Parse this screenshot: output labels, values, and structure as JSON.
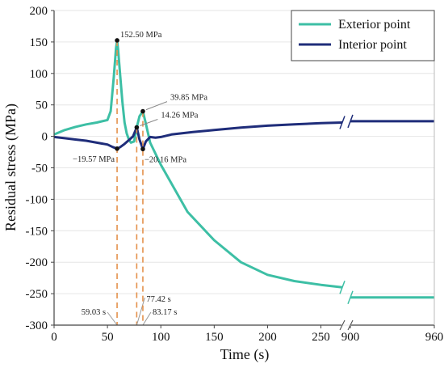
{
  "chart_data": {
    "type": "line",
    "xlabel": "Time (s)",
    "ylabel": "Residual stress (MPa)",
    "ylim": [
      -300,
      200
    ],
    "x_ticks": [
      "0",
      "50",
      "100",
      "150",
      "200",
      "250",
      "900",
      "960"
    ],
    "y_ticks": [
      "200",
      "150",
      "100",
      "50",
      "0",
      "-50",
      "-100",
      "-150",
      "-200",
      "-250",
      "-300"
    ],
    "x_break": {
      "between": [
        270,
        900
      ]
    },
    "legend_position": "top-right",
    "series": [
      {
        "name": "Exterior point",
        "color": "#3dbfa5",
        "points": [
          [
            0,
            3
          ],
          [
            10,
            10
          ],
          [
            20,
            15
          ],
          [
            30,
            19
          ],
          [
            40,
            22
          ],
          [
            50,
            26
          ],
          [
            53,
            40
          ],
          [
            56,
            95
          ],
          [
            58,
            140
          ],
          [
            59.03,
            152.5
          ],
          [
            60,
            138
          ],
          [
            62,
            95
          ],
          [
            64,
            55
          ],
          [
            66,
            22
          ],
          [
            68,
            5
          ],
          [
            70,
            -5
          ],
          [
            72,
            -10
          ],
          [
            75,
            -8
          ],
          [
            77.42,
            14.26
          ],
          [
            80,
            32
          ],
          [
            83.17,
            39.85
          ],
          [
            86,
            20
          ],
          [
            90,
            -10
          ],
          [
            100,
            -45
          ],
          [
            125,
            -120
          ],
          [
            150,
            -165
          ],
          [
            175,
            -200
          ],
          [
            200,
            -220
          ],
          [
            225,
            -230
          ],
          [
            250,
            -236
          ],
          [
            270,
            -240
          ],
          [
            900,
            -256
          ],
          [
            960,
            -256
          ]
        ]
      },
      {
        "name": "Interior point",
        "color": "#1f2d7a",
        "points": [
          [
            0,
            -1
          ],
          [
            10,
            -3
          ],
          [
            20,
            -5
          ],
          [
            30,
            -7
          ],
          [
            40,
            -10
          ],
          [
            50,
            -13
          ],
          [
            55,
            -17
          ],
          [
            59.03,
            -19.57
          ],
          [
            62,
            -17
          ],
          [
            66,
            -12
          ],
          [
            70,
            -6
          ],
          [
            74,
            0
          ],
          [
            77.42,
            14.26
          ],
          [
            80,
            -5
          ],
          [
            83.17,
            -20.16
          ],
          [
            86,
            -8
          ],
          [
            90,
            -1
          ],
          [
            95,
            -2
          ],
          [
            100,
            -1
          ],
          [
            110,
            3
          ],
          [
            130,
            7
          ],
          [
            150,
            10
          ],
          [
            175,
            14
          ],
          [
            200,
            17
          ],
          [
            225,
            19
          ],
          [
            250,
            21
          ],
          [
            270,
            22
          ],
          [
            900,
            24
          ],
          [
            960,
            24
          ]
        ]
      }
    ],
    "annotations": [
      {
        "text": "152.50 MPa",
        "x": 59.03,
        "y": 152.5,
        "series": "Exterior point"
      },
      {
        "text": "39.85 MPa",
        "x": 83.17,
        "y": 39.85,
        "series": "Exterior point"
      },
      {
        "text": "14.26 MPa",
        "x": 77.42,
        "y": 14.26,
        "series": "Interior point"
      },
      {
        "text": "−19.57 MPa",
        "x": 59.03,
        "y": -19.57,
        "series": "Interior point"
      },
      {
        "text": "−20.16 MPa",
        "x": 83.17,
        "y": -20.16,
        "series": "Interior point"
      }
    ],
    "vlines": [
      {
        "x": 59.03,
        "label": "59.03 s"
      },
      {
        "x": 77.42,
        "label": "77.42 s"
      },
      {
        "x": 83.17,
        "label": "83.17 s"
      }
    ]
  }
}
